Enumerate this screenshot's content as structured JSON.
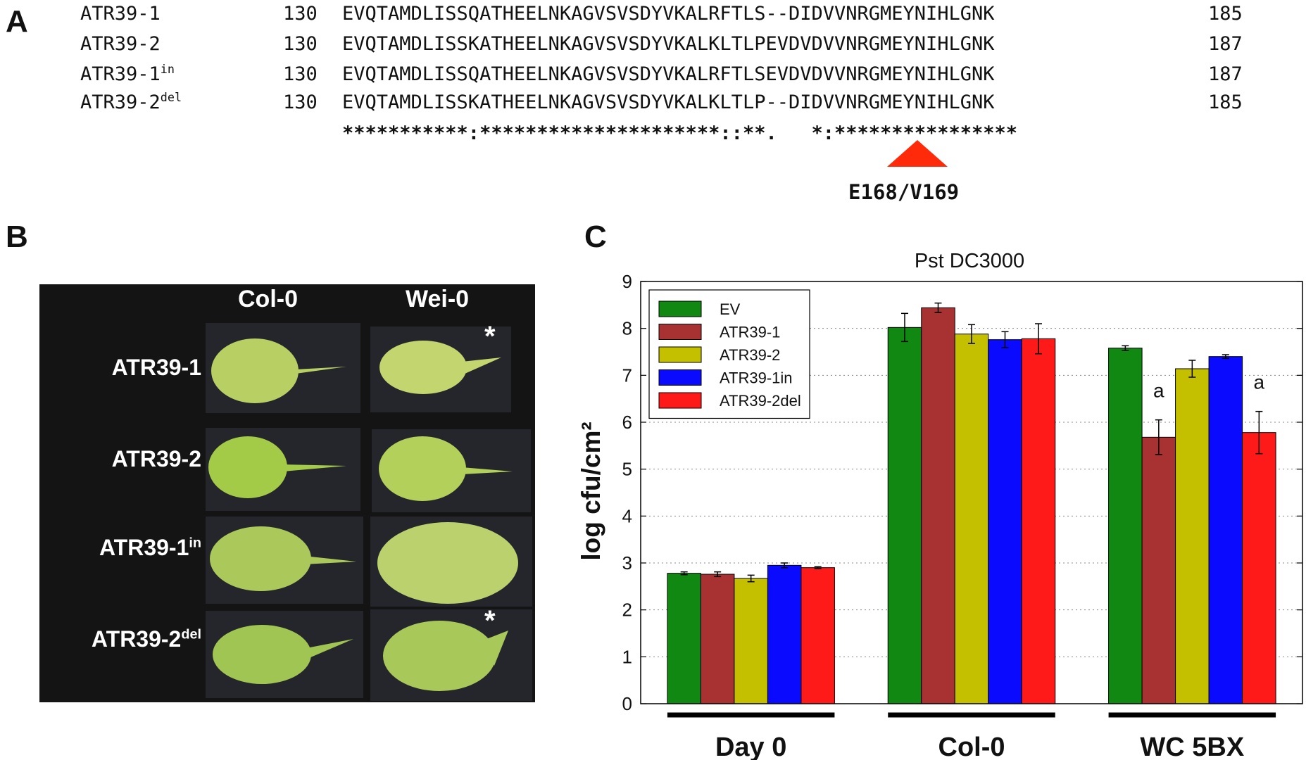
{
  "panel_a": {
    "letter": "A",
    "rows": [
      {
        "name": "ATR39-1",
        "sup": "",
        "start": "130",
        "seq": "EVQTAMDLISSQATHEELNKAGVSVSDYVKALRFTLS--DIDVVNRGMEYNIHLGNK",
        "end": "185"
      },
      {
        "name": "ATR39-2",
        "sup": "",
        "start": "130",
        "seq": "EVQTAMDLISSKATHEELNKAGVSVSDYVKALKLTLPEVDVDVVNRGMEYNIHLGNK",
        "end": "187"
      },
      {
        "name": "ATR39-1",
        "sup": "in",
        "start": "130",
        "seq": "EVQTAMDLISSQATHEELNKAGVSVSDYVKALRFTLSEVDVDVVNRGMEYNIHLGNK",
        "end": "187"
      },
      {
        "name": "ATR39-2",
        "sup": "del",
        "start": "130",
        "seq": "EVQTAMDLISSKATHEELNKAGVSVSDYVKALKLTLP--DIDVVNRGMEYNIHLGNK",
        "end": "185"
      }
    ],
    "consensus": "***********:*********************::**.   *:****************",
    "marker_color": "#ff2a0a",
    "mutation_label": "E168/V169"
  },
  "panel_b": {
    "letter": "B",
    "col_headers": [
      "Col-0",
      "Wei-0"
    ],
    "row_labels": [
      {
        "name": "ATR39-1",
        "sup": ""
      },
      {
        "name": "ATR39-2",
        "sup": ""
      },
      {
        "name": "ATR39-1",
        "sup": "in"
      },
      {
        "name": "ATR39-2",
        "sup": "del"
      }
    ],
    "star": "*",
    "leaf_color": "#a8c85a"
  },
  "panel_c": {
    "letter": "C",
    "chart_data": {
      "type": "bar",
      "title": "Pst DC3000",
      "ylabel": "log cfu/cm²",
      "xlabel": "",
      "ylim": [
        0,
        9
      ],
      "yticks": [
        "0",
        "1",
        "2",
        "3",
        "4",
        "5",
        "6",
        "7",
        "8",
        "9"
      ],
      "grid": "y-dotted",
      "legend_position": "top-left",
      "categories": [
        "Day 0",
        "Col-0",
        "WC 5BX"
      ],
      "series": [
        {
          "name": "EV",
          "color": "#118811",
          "values": [
            2.78,
            8.02,
            7.58
          ],
          "errors": [
            0.03,
            0.3,
            0.05
          ]
        },
        {
          "name": "ATR39-1",
          "color": "#a83232",
          "values": [
            2.76,
            8.44,
            5.68
          ],
          "errors": [
            0.05,
            0.1,
            0.37
          ]
        },
        {
          "name": "ATR39-2",
          "color": "#c4c000",
          "values": [
            2.67,
            7.88,
            7.14
          ],
          "errors": [
            0.07,
            0.2,
            0.18
          ]
        },
        {
          "name": "ATR39-1in",
          "color": "#0a0aff",
          "values": [
            2.95,
            7.76,
            7.4
          ],
          "errors": [
            0.05,
            0.17,
            0.04
          ]
        },
        {
          "name": "ATR39-2del",
          "color": "#ff1a1a",
          "values": [
            2.9,
            7.78,
            5.78
          ],
          "errors": [
            0.02,
            0.32,
            0.45
          ]
        }
      ],
      "annotations": [
        {
          "category": "WC 5BX",
          "series": "ATR39-1",
          "text": "a"
        },
        {
          "category": "WC 5BX",
          "series": "ATR39-2del",
          "text": "a"
        }
      ]
    }
  }
}
